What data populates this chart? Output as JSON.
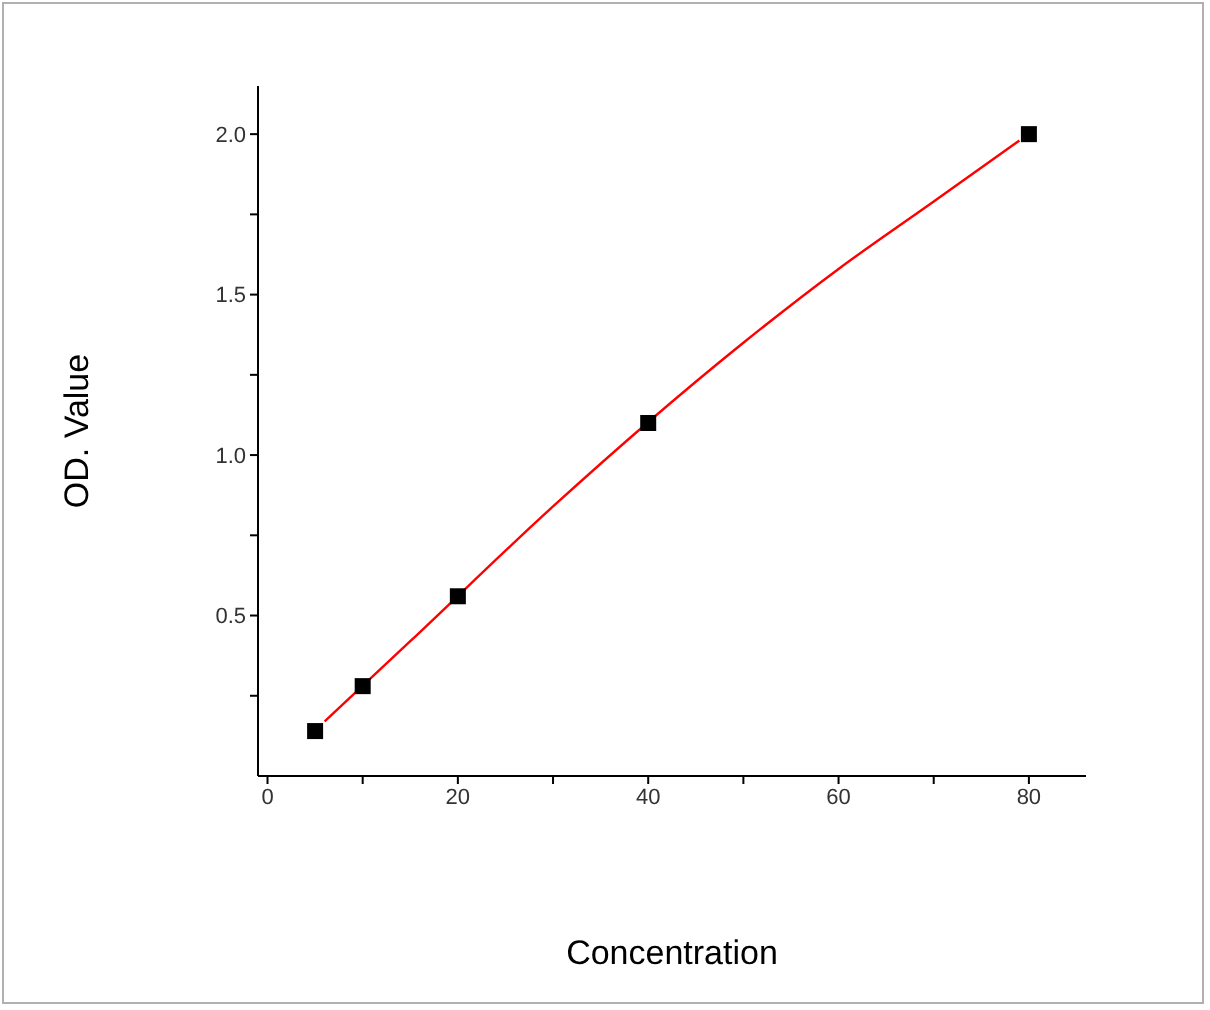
{
  "chart_data": {
    "type": "scatter",
    "xlabel": "Concentration",
    "ylabel": "OD. Value",
    "xlim": [
      -1,
      86
    ],
    "ylim": [
      0,
      2.15
    ],
    "xticks": [
      0,
      {
        "value": 10,
        "label": null
      },
      20,
      {
        "value": 30,
        "label": null
      },
      40,
      {
        "value": 50,
        "label": null
      },
      60,
      {
        "value": 70,
        "label": null
      },
      80
    ],
    "yticks": [
      {
        "value": 0.25,
        "label": null
      },
      0.5,
      {
        "value": 0.75,
        "label": null
      },
      {
        "value": 1,
        "label": "1.0"
      },
      {
        "value": 1.25,
        "label": null
      },
      1.5,
      {
        "value": 1.75,
        "label": null
      },
      {
        "value": 2,
        "label": "2.0"
      }
    ],
    "grid": false,
    "series": [
      {
        "type": "line",
        "color": "#ff0000",
        "marker": "none",
        "line_style": "solid",
        "x": [
          6,
          15,
          30,
          50,
          60,
          70,
          79
        ],
        "values": [
          0.17,
          0.42,
          0.84,
          1.35,
          1.58,
          1.79,
          1.98
        ]
      },
      {
        "color": "#000000",
        "marker": "square",
        "x": [
          5,
          10,
          20,
          40,
          80
        ],
        "values": [
          0.14,
          0.28,
          0.56,
          1.1,
          2.0
        ]
      }
    ]
  }
}
